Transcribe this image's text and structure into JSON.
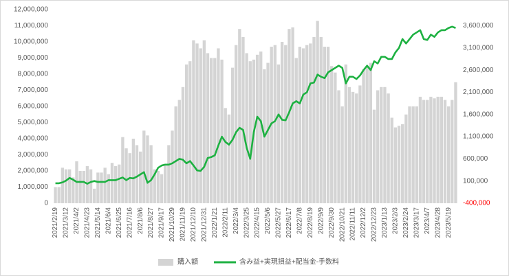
{
  "chart_data": {
    "type": "combo",
    "categories": [
      "2021/2/19",
      null,
      null,
      "2021/3/12",
      null,
      null,
      "2021/4/2",
      null,
      null,
      "2021/4/23",
      null,
      null,
      "2021/5/14",
      null,
      null,
      "2021/6/4",
      null,
      null,
      "2021/6/25",
      null,
      null,
      "2021/7/16",
      null,
      null,
      "2021/8/6",
      null,
      null,
      "2021/8/27",
      null,
      null,
      "2021/9/17",
      null,
      null,
      "2021/10/29",
      null,
      null,
      "2021/11/19",
      null,
      null,
      "2021/12/10",
      null,
      null,
      "2021/12/31",
      null,
      null,
      "2022/1/21",
      null,
      null,
      "2022/2/11",
      null,
      null,
      "2022/3/4",
      null,
      null,
      "2022/3/25",
      null,
      null,
      "2022/4/15",
      null,
      null,
      "2022/5/6",
      null,
      null,
      "2022/5/27",
      null,
      null,
      "2022/6/17",
      null,
      null,
      "2022/7/8",
      null,
      null,
      "2022/8/19",
      null,
      null,
      "2022/9/9",
      null,
      null,
      "2022/9/30",
      null,
      null,
      "2022/10/21",
      null,
      null,
      "2022/11/11",
      null,
      null,
      "2022/12/2",
      null,
      null,
      "2022/12/23",
      null,
      null,
      "2023/1/13",
      null,
      null,
      "2023/2/3",
      null,
      null,
      "2023/2/24",
      null,
      null,
      "2023/3/17",
      null,
      null,
      "2023/4/7",
      null,
      null,
      "2023/4/28",
      null,
      null,
      "2023/5/19",
      null,
      null
    ],
    "series": [
      {
        "name": "購入額",
        "type": "bar",
        "axis": "y",
        "color": "#d4d4d4",
        "values": [
          1000000,
          1000000,
          2200000,
          2100000,
          2100000,
          1600000,
          2600000,
          2000000,
          2000000,
          2300000,
          2100000,
          900000,
          1900000,
          1900000,
          2200000,
          1800000,
          2500000,
          2300000,
          2400000,
          4100000,
          3400000,
          3100000,
          4000000,
          3600000,
          3200000,
          4500000,
          4200000,
          3600000,
          2100000,
          2000000,
          1800000,
          2400000,
          3600000,
          4500000,
          6000000,
          6400000,
          7200000,
          8600000,
          8800000,
          10100000,
          9900000,
          9600000,
          10100000,
          9300000,
          9000000,
          9000000,
          9600000,
          8900000,
          5900000,
          5500000,
          8400000,
          9800000,
          10800000,
          10300000,
          9300000,
          8800000,
          8900000,
          9200000,
          9400000,
          8300000,
          8700000,
          9700000,
          9800000,
          8600000,
          10000000,
          9800000,
          10800000,
          10900000,
          9000000,
          9700000,
          9600000,
          9800000,
          9900000,
          10300000,
          11300000,
          10300000,
          9700000,
          9700000,
          8500000,
          8100000,
          7000000,
          6000000,
          8600000,
          7200000,
          6900000,
          6800000,
          7300000,
          8300000,
          8500000,
          8700000,
          5800000,
          7000000,
          7200000,
          7200000,
          6800000,
          5300000,
          4700000,
          4800000,
          4900000,
          5500000,
          6000000,
          6000000,
          6000000,
          6600000,
          6400000,
          6400000,
          6600000,
          6500000,
          6600000,
          6600000,
          6400000,
          6000000,
          6400000,
          7500000
        ]
      },
      {
        "name": "含み益+実現損益+配当金-手数料",
        "type": "line",
        "axis": "y2",
        "color": "#1db141",
        "values": [
          50000,
          50000,
          70000,
          110000,
          170000,
          130000,
          80000,
          80000,
          80000,
          40000,
          80000,
          100000,
          80000,
          80000,
          80000,
          120000,
          120000,
          120000,
          150000,
          180000,
          120000,
          170000,
          160000,
          200000,
          250000,
          300000,
          60000,
          120000,
          250000,
          400000,
          450000,
          470000,
          470000,
          500000,
          550000,
          600000,
          580000,
          500000,
          550000,
          450000,
          340000,
          330000,
          420000,
          620000,
          640000,
          680000,
          900000,
          1100000,
          980000,
          920000,
          1030000,
          1200000,
          1300000,
          1250000,
          850000,
          600000,
          1200000,
          1550000,
          1450000,
          1100000,
          1250000,
          1400000,
          1450000,
          1600000,
          1480000,
          1470000,
          1650000,
          1850000,
          1900000,
          1850000,
          2050000,
          2100000,
          2300000,
          2320000,
          2500000,
          2450000,
          2420000,
          2550000,
          2600000,
          2650000,
          2700000,
          2650000,
          2300000,
          2450000,
          2450000,
          2400000,
          2480000,
          2600000,
          2700000,
          2600000,
          2800000,
          2750000,
          2900000,
          2900000,
          2850000,
          2850000,
          3000000,
          3100000,
          3300000,
          3200000,
          3300000,
          3400000,
          3450000,
          3500000,
          3300000,
          3280000,
          3400000,
          3350000,
          3450000,
          3500000,
          3500000,
          3550000,
          3580000,
          3550000
        ]
      }
    ],
    "ylim": [
      0,
      12000000
    ],
    "yticks": [
      0,
      {
        "value": 1000000,
        "label": "1,000,000"
      },
      {
        "value": 2000000,
        "label": "2,000,000"
      },
      {
        "value": 3000000,
        "label": "3,000,000"
      },
      {
        "value": 4000000,
        "label": "4,000,000"
      },
      {
        "value": 5000000,
        "label": "5,000,000"
      },
      {
        "value": 6000000,
        "label": "6,000,000"
      },
      {
        "value": 7000000,
        "label": "7,000,000"
      },
      {
        "value": 8000000,
        "label": "8,000,000"
      },
      {
        "value": 9000000,
        "label": "9,000,000"
      },
      {
        "value": 10000000,
        "label": "10,000,000"
      },
      {
        "value": 11000000,
        "label": "11,000,000"
      },
      {
        "value": 12000000,
        "label": "12,000,000"
      }
    ],
    "y2lim": [
      -400000,
      3963636
    ],
    "y2ticks": [
      {
        "value": -400000,
        "label": "-400,000"
      },
      {
        "value": 100000,
        "label": "100,000"
      },
      {
        "value": 600000,
        "label": "600,000"
      },
      {
        "value": 1100000,
        "label": "1,100,000"
      },
      {
        "value": 1600000,
        "label": "1,600,000"
      },
      {
        "value": 2100000,
        "label": "2,100,000"
      },
      {
        "value": 2600000,
        "label": "2,600,000"
      },
      {
        "value": 3100000,
        "label": "3,100,000"
      },
      {
        "value": 3600000,
        "label": "3,600,000"
      }
    ],
    "negative_tick_color": "#ff0000",
    "legend": "bottom"
  }
}
